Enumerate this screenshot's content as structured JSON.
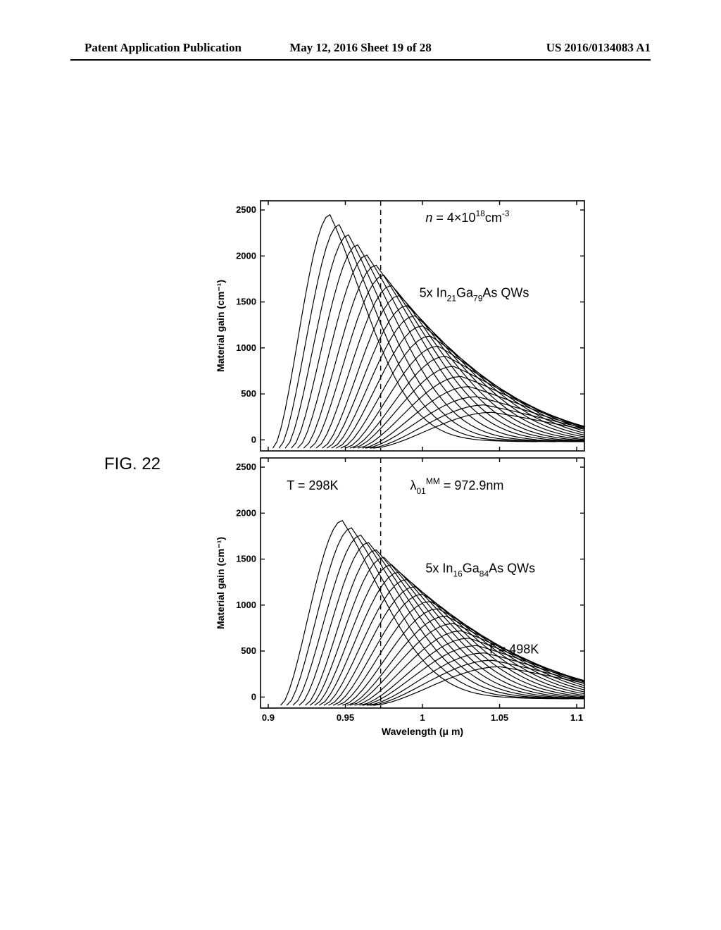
{
  "header": {
    "left": "Patent Application Publication",
    "center": "May 12, 2016  Sheet 19 of 28",
    "right": "US 2016/0134083 A1"
  },
  "figure_label": "FIG. 22",
  "chart": {
    "type": "line",
    "background_color": "#ffffff",
    "axis_color": "#000000",
    "curve_color": "#000000",
    "curve_linewidth": 1.2,
    "dashed_line_color": "#000000",
    "xlabel": "Wavelength (μ m)",
    "ylabel": "Material gain (cm⁻¹)",
    "label_fontsize": 14,
    "tick_fontsize": 13,
    "xlim": [
      0.895,
      1.105
    ],
    "xticks": [
      0.9,
      0.95,
      1.0,
      1.05,
      1.1
    ],
    "xtick_labels": [
      "0.9",
      "0.95",
      "1",
      "1.05",
      "1.1"
    ],
    "ylim": [
      -120,
      2600
    ],
    "yticks": [
      0,
      500,
      1000,
      1500,
      2000,
      2500
    ],
    "ytick_labels": [
      "0",
      "500",
      "1000",
      "1500",
      "2000",
      "2500"
    ],
    "dashed_x": 0.9729,
    "panel_top": {
      "annotations": {
        "density": "n = 4×10¹⁸cm⁻³",
        "qw_label": "5x In₂₁Ga₇₉As QWs"
      },
      "curves": [
        {
          "peak_x": 0.94,
          "peak_y": 2450,
          "lead_x": 0.903,
          "fwhm": 0.042
        },
        {
          "peak_x": 0.946,
          "peak_y": 2340,
          "lead_x": 0.907,
          "fwhm": 0.044
        },
        {
          "peak_x": 0.952,
          "peak_y": 2230,
          "lead_x": 0.911,
          "fwhm": 0.046
        },
        {
          "peak_x": 0.958,
          "peak_y": 2120,
          "lead_x": 0.915,
          "fwhm": 0.048
        },
        {
          "peak_x": 0.964,
          "peak_y": 2010,
          "lead_x": 0.919,
          "fwhm": 0.05
        },
        {
          "peak_x": 0.97,
          "peak_y": 1900,
          "lead_x": 0.923,
          "fwhm": 0.052
        },
        {
          "peak_x": 0.975,
          "peak_y": 1790,
          "lead_x": 0.927,
          "fwhm": 0.054
        },
        {
          "peak_x": 0.98,
          "peak_y": 1680,
          "lead_x": 0.931,
          "fwhm": 0.056
        },
        {
          "peak_x": 0.985,
          "peak_y": 1570,
          "lead_x": 0.935,
          "fwhm": 0.058
        },
        {
          "peak_x": 0.99,
          "peak_y": 1460,
          "lead_x": 0.938,
          "fwhm": 0.06
        },
        {
          "peak_x": 0.995,
          "peak_y": 1350,
          "lead_x": 0.941,
          "fwhm": 0.062
        },
        {
          "peak_x": 1.0,
          "peak_y": 1240,
          "lead_x": 0.944,
          "fwhm": 0.064
        },
        {
          "peak_x": 1.005,
          "peak_y": 1130,
          "lead_x": 0.947,
          "fwhm": 0.066
        },
        {
          "peak_x": 1.01,
          "peak_y": 1020,
          "lead_x": 0.95,
          "fwhm": 0.068
        },
        {
          "peak_x": 1.015,
          "peak_y": 910,
          "lead_x": 0.953,
          "fwhm": 0.07
        },
        {
          "peak_x": 1.02,
          "peak_y": 800,
          "lead_x": 0.955,
          "fwhm": 0.072
        },
        {
          "peak_x": 1.025,
          "peak_y": 690,
          "lead_x": 0.958,
          "fwhm": 0.074
        },
        {
          "peak_x": 1.03,
          "peak_y": 580,
          "lead_x": 0.961,
          "fwhm": 0.076
        },
        {
          "peak_x": 1.035,
          "peak_y": 470,
          "lead_x": 0.963,
          "fwhm": 0.078
        },
        {
          "peak_x": 1.04,
          "peak_y": 380,
          "lead_x": 0.966,
          "fwhm": 0.08
        },
        {
          "peak_x": 1.045,
          "peak_y": 300,
          "lead_x": 0.968,
          "fwhm": 0.082
        }
      ]
    },
    "panel_bottom": {
      "annotations": {
        "temp_low": "T = 298K",
        "temp_high": "T = 498K",
        "lambda": "λ₀₁ᴹᴹ = 972.9nm",
        "qw_label": "5x In₁₆Ga₈₄As QWs"
      },
      "curves": [
        {
          "peak_x": 0.948,
          "peak_y": 1920,
          "lead_x": 0.908,
          "fwhm": 0.046
        },
        {
          "peak_x": 0.954,
          "peak_y": 1840,
          "lead_x": 0.912,
          "fwhm": 0.048
        },
        {
          "peak_x": 0.96,
          "peak_y": 1760,
          "lead_x": 0.916,
          "fwhm": 0.05
        },
        {
          "peak_x": 0.965,
          "peak_y": 1680,
          "lead_x": 0.92,
          "fwhm": 0.052
        },
        {
          "peak_x": 0.97,
          "peak_y": 1600,
          "lead_x": 0.924,
          "fwhm": 0.054
        },
        {
          "peak_x": 0.975,
          "peak_y": 1520,
          "lead_x": 0.927,
          "fwhm": 0.056
        },
        {
          "peak_x": 0.98,
          "peak_y": 1440,
          "lead_x": 0.93,
          "fwhm": 0.058
        },
        {
          "peak_x": 0.985,
          "peak_y": 1360,
          "lead_x": 0.933,
          "fwhm": 0.06
        },
        {
          "peak_x": 0.99,
          "peak_y": 1280,
          "lead_x": 0.936,
          "fwhm": 0.062
        },
        {
          "peak_x": 0.995,
          "peak_y": 1200,
          "lead_x": 0.939,
          "fwhm": 0.064
        },
        {
          "peak_x": 1.0,
          "peak_y": 1120,
          "lead_x": 0.942,
          "fwhm": 0.066
        },
        {
          "peak_x": 1.005,
          "peak_y": 1040,
          "lead_x": 0.945,
          "fwhm": 0.068
        },
        {
          "peak_x": 1.01,
          "peak_y": 960,
          "lead_x": 0.948,
          "fwhm": 0.07
        },
        {
          "peak_x": 1.015,
          "peak_y": 880,
          "lead_x": 0.951,
          "fwhm": 0.072
        },
        {
          "peak_x": 1.02,
          "peak_y": 800,
          "lead_x": 0.953,
          "fwhm": 0.074
        },
        {
          "peak_x": 1.025,
          "peak_y": 720,
          "lead_x": 0.956,
          "fwhm": 0.076
        },
        {
          "peak_x": 1.03,
          "peak_y": 640,
          "lead_x": 0.959,
          "fwhm": 0.078
        },
        {
          "peak_x": 1.035,
          "peak_y": 560,
          "lead_x": 0.961,
          "fwhm": 0.08
        },
        {
          "peak_x": 1.04,
          "peak_y": 480,
          "lead_x": 0.964,
          "fwhm": 0.082
        },
        {
          "peak_x": 1.045,
          "peak_y": 400,
          "lead_x": 0.966,
          "fwhm": 0.084
        },
        {
          "peak_x": 1.05,
          "peak_y": 330,
          "lead_x": 0.968,
          "fwhm": 0.086
        }
      ]
    }
  }
}
